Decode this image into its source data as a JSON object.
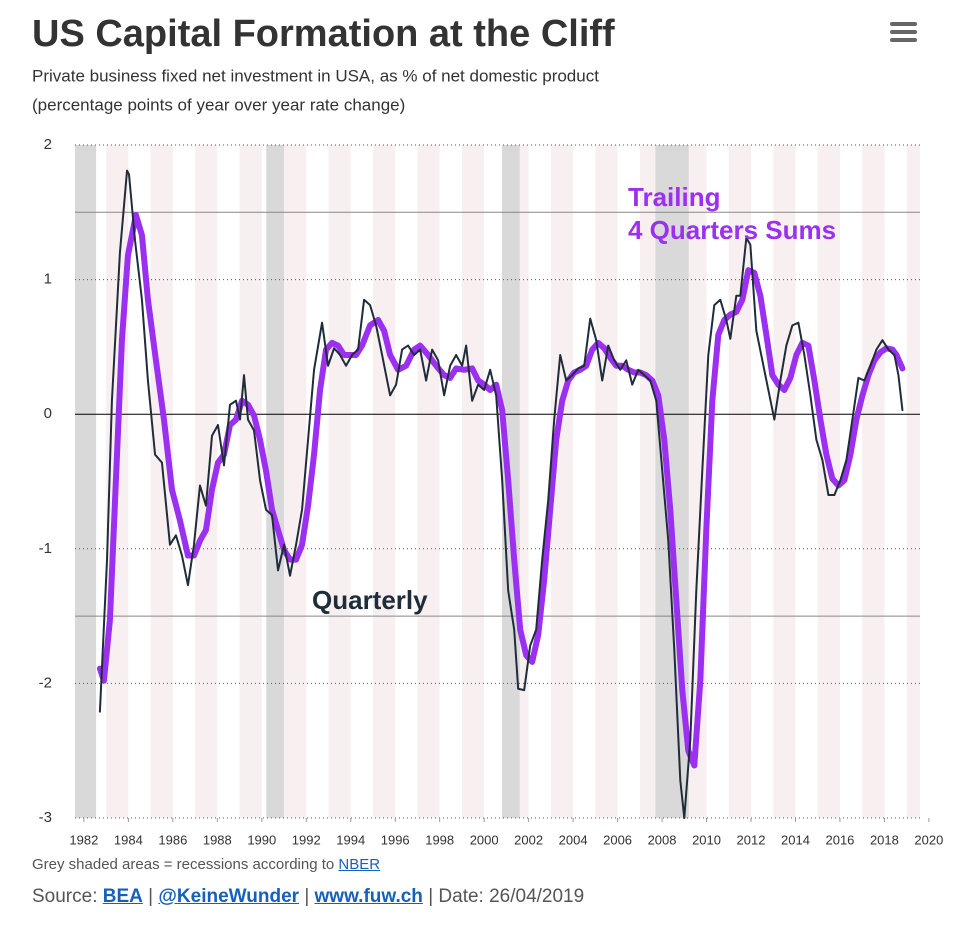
{
  "chart_data": {
    "type": "line",
    "title": "US Capital Formation at the Cliff",
    "subtitle": [
      "Private business fixed net investment in USA, as % of net domestic product",
      "(percentage points of year over year rate change)"
    ],
    "xlim": [
      1981.6,
      2019.6
    ],
    "xticks": [
      1982,
      1984,
      1986,
      1988,
      1990,
      1992,
      1994,
      1996,
      1998,
      2000,
      2002,
      2004,
      2006,
      2008,
      2010,
      2012,
      2014,
      2016,
      2018,
      2020
    ],
    "ylim": [
      -3,
      2
    ],
    "yticks": [
      -3,
      -2,
      -1,
      0,
      1,
      2
    ],
    "grid": true,
    "reference_lines": [
      1.5,
      -1.5
    ],
    "recessions": [
      [
        1981.6,
        1982.55
      ],
      [
        1990.2,
        1991.0
      ],
      [
        2000.8,
        2001.6
      ],
      [
        2007.7,
        2009.2
      ]
    ],
    "series": [
      {
        "color": "#9b30f0",
        "x": [
          1982.72,
          1982.9,
          1983.17,
          1983.44,
          1983.71,
          1983.98,
          1984.34,
          1984.61,
          1984.88,
          1985.24,
          1985.6,
          1985.96,
          1986.32,
          1986.68,
          1986.95,
          1987.22,
          1987.49,
          1987.76,
          1988.03,
          1988.3,
          1988.57,
          1988.84,
          1989.11,
          1989.38,
          1989.65,
          1989.92,
          1990.19,
          1990.46,
          1990.73,
          1991.0,
          1991.27,
          1991.54,
          1991.81,
          1992.08,
          1992.35,
          1992.62,
          1992.89,
          1993.16,
          1993.43,
          1993.7,
          1993.97,
          1994.24,
          1994.51,
          1994.87,
          1995.23,
          1995.5,
          1995.77,
          1996.13,
          1996.49,
          1996.85,
          1997.12,
          1997.48,
          1997.84,
          1998.2,
          1998.47,
          1998.74,
          1999.1,
          1999.46,
          1999.73,
          2000.0,
          2000.27,
          2000.54,
          2000.81,
          2001.08,
          2001.35,
          2001.62,
          2001.89,
          2002.16,
          2002.43,
          2002.7,
          2002.97,
          2003.24,
          2003.51,
          2003.78,
          2004.05,
          2004.32,
          2004.59,
          2004.86,
          2005.13,
          2005.4,
          2005.67,
          2005.94,
          2006.21,
          2006.48,
          2006.75,
          2007.02,
          2007.29,
          2007.56,
          2007.83,
          2008.1,
          2008.37,
          2008.64,
          2008.91,
          2009.18,
          2009.45,
          2009.72,
          2009.99,
          2010.26,
          2010.53,
          2010.8,
          2011.07,
          2011.34,
          2011.61,
          2011.88,
          2012.15,
          2012.42,
          2012.69,
          2012.96,
          2013.23,
          2013.5,
          2013.77,
          2014.04,
          2014.31,
          2014.58,
          2014.85,
          2015.12,
          2015.39,
          2015.66,
          2015.93,
          2016.2,
          2016.47,
          2016.74,
          2017.01,
          2017.28,
          2017.55,
          2017.82,
          2018.09,
          2018.36,
          2018.54,
          2018.81
        ],
        "values": [
          -1.89,
          -1.98,
          -1.53,
          -0.49,
          0.55,
          1.18,
          1.48,
          1.33,
          0.85,
          0.4,
          -0.04,
          -0.56,
          -0.79,
          -1.05,
          -1.05,
          -0.94,
          -0.86,
          -0.56,
          -0.36,
          -0.3,
          -0.08,
          -0.04,
          0.1,
          0.07,
          -0.01,
          -0.19,
          -0.42,
          -0.71,
          -0.86,
          -1.01,
          -1.08,
          -1.08,
          -0.97,
          -0.68,
          -0.3,
          0.18,
          0.48,
          0.53,
          0.51,
          0.44,
          0.44,
          0.44,
          0.51,
          0.66,
          0.7,
          0.62,
          0.44,
          0.33,
          0.36,
          0.48,
          0.51,
          0.44,
          0.36,
          0.29,
          0.27,
          0.34,
          0.33,
          0.34,
          0.25,
          0.22,
          0.18,
          0.22,
          0.03,
          -0.49,
          -1.08,
          -1.6,
          -1.79,
          -1.84,
          -1.64,
          -1.23,
          -0.71,
          -0.19,
          0.1,
          0.25,
          0.31,
          0.33,
          0.36,
          0.48,
          0.53,
          0.49,
          0.42,
          0.36,
          0.36,
          0.33,
          0.31,
          0.31,
          0.29,
          0.25,
          0.14,
          -0.19,
          -0.71,
          -1.38,
          -2.05,
          -2.5,
          -2.61,
          -1.98,
          -0.86,
          0.1,
          0.59,
          0.7,
          0.74,
          0.76,
          0.85,
          1.07,
          1.05,
          0.88,
          0.59,
          0.29,
          0.22,
          0.18,
          0.27,
          0.44,
          0.53,
          0.51,
          0.25,
          -0.04,
          -0.3,
          -0.48,
          -0.53,
          -0.49,
          -0.3,
          -0.04,
          0.14,
          0.29,
          0.4,
          0.46,
          0.49,
          0.48,
          0.44,
          0.34
        ]
      },
      {
        "color": "#1f2d3a",
        "x": [
          1982.72,
          1983.04,
          1983.26,
          1983.62,
          1983.94,
          1984.03,
          1984.3,
          1984.61,
          1984.88,
          1985.2,
          1985.51,
          1985.87,
          1986.14,
          1986.41,
          1986.68,
          1986.95,
          1987.22,
          1987.49,
          1987.76,
          1988.03,
          1988.3,
          1988.57,
          1988.84,
          1989.02,
          1989.2,
          1989.38,
          1989.65,
          1989.92,
          1990.19,
          1990.46,
          1990.73,
          1991.0,
          1991.27,
          1991.54,
          1991.81,
          1992.08,
          1992.35,
          1992.71,
          1992.98,
          1993.25,
          1993.52,
          1993.79,
          1994.06,
          1994.33,
          1994.6,
          1994.87,
          1995.14,
          1995.41,
          1995.77,
          1996.04,
          1996.31,
          1996.58,
          1996.85,
          1997.12,
          1997.39,
          1997.66,
          1997.93,
          1998.2,
          1998.47,
          1998.74,
          1999.01,
          1999.19,
          1999.46,
          1999.73,
          2000.0,
          2000.27,
          2000.54,
          2000.81,
          2001.08,
          2001.35,
          2001.53,
          2001.8,
          2002.07,
          2002.34,
          2002.61,
          2002.88,
          2003.15,
          2003.42,
          2003.69,
          2003.96,
          2004.23,
          2004.5,
          2004.77,
          2005.04,
          2005.31,
          2005.58,
          2005.85,
          2006.12,
          2006.39,
          2006.66,
          2006.93,
          2007.2,
          2007.47,
          2007.74,
          2008.01,
          2008.28,
          2008.55,
          2008.82,
          2009.0,
          2009.27,
          2009.54,
          2009.81,
          2010.08,
          2010.35,
          2010.62,
          2010.89,
          2011.07,
          2011.34,
          2011.52,
          2011.79,
          2011.97,
          2012.24,
          2012.51,
          2012.78,
          2013.05,
          2013.32,
          2013.59,
          2013.86,
          2014.13,
          2014.4,
          2014.67,
          2014.94,
          2015.21,
          2015.48,
          2015.75,
          2016.02,
          2016.29,
          2016.56,
          2016.83,
          2017.1,
          2017.37,
          2017.64,
          2017.91,
          2018.18,
          2018.45,
          2018.63,
          2018.81
        ],
        "values": [
          -2.21,
          -1.08,
          0.1,
          1.2,
          1.81,
          1.78,
          1.29,
          0.85,
          0.25,
          -0.3,
          -0.36,
          -0.97,
          -0.9,
          -1.05,
          -1.27,
          -0.97,
          -0.53,
          -0.68,
          -0.16,
          -0.08,
          -0.38,
          0.07,
          0.1,
          -0.04,
          0.29,
          -0.04,
          -0.12,
          -0.49,
          -0.71,
          -0.75,
          -1.16,
          -0.97,
          -1.2,
          -0.97,
          -0.71,
          -0.19,
          0.33,
          0.68,
          0.36,
          0.49,
          0.44,
          0.36,
          0.44,
          0.48,
          0.85,
          0.81,
          0.66,
          0.44,
          0.14,
          0.22,
          0.48,
          0.51,
          0.44,
          0.48,
          0.25,
          0.48,
          0.4,
          0.14,
          0.36,
          0.44,
          0.36,
          0.51,
          0.1,
          0.22,
          0.18,
          0.33,
          0.14,
          -0.49,
          -1.31,
          -1.6,
          -2.04,
          -2.05,
          -1.72,
          -1.6,
          -1.08,
          -0.64,
          -0.04,
          0.44,
          0.25,
          0.29,
          0.34,
          0.36,
          0.71,
          0.55,
          0.25,
          0.51,
          0.4,
          0.33,
          0.4,
          0.22,
          0.33,
          0.29,
          0.25,
          0.1,
          -0.42,
          -0.94,
          -1.75,
          -2.72,
          -3.0,
          -2.42,
          -1.31,
          -0.42,
          0.44,
          0.81,
          0.85,
          0.7,
          0.56,
          0.88,
          0.88,
          1.31,
          1.26,
          0.62,
          0.4,
          0.18,
          -0.04,
          0.25,
          0.51,
          0.66,
          0.68,
          0.44,
          0.14,
          -0.19,
          -0.34,
          -0.6,
          -0.6,
          -0.49,
          -0.34,
          -0.04,
          0.27,
          0.25,
          0.36,
          0.48,
          0.55,
          0.48,
          0.44,
          0.29,
          0.03
        ]
      }
    ],
    "annotations": [
      {
        "lines": [
          "Trailing",
          "4 Quarters Sums"
        ],
        "color": "#9b30f0"
      },
      {
        "lines": [
          "Quarterly"
        ],
        "color": "#1f2d3a"
      }
    ]
  },
  "footer": {
    "note": "Grey shaded areas = recessions according to",
    "note_link": "NBER",
    "source_label": "Source:",
    "sources": [
      "BEA",
      "@KeineWunder",
      "www.fuw.ch"
    ],
    "separator": "|",
    "date": "Date: 26/04/2019"
  }
}
